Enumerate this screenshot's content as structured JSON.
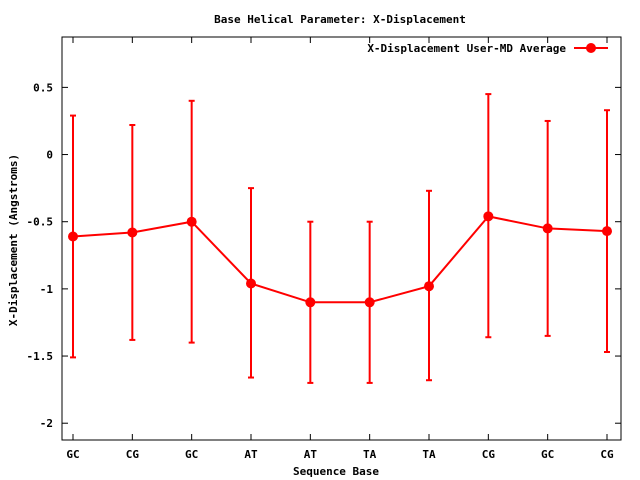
{
  "chart_data": {
    "type": "line",
    "title": "Base  Helical Parameter: X-Displacement",
    "xlabel": "Sequence Base",
    "ylabel": "X-Displacement (Angstroms)",
    "categories": [
      "GC",
      "CG",
      "GC",
      "AT",
      "AT",
      "TA",
      "TA",
      "CG",
      "GC",
      "CG"
    ],
    "ylim": [
      -2.125,
      0.875
    ],
    "yticks": [
      0.5,
      0,
      -0.5,
      -1,
      -1.5,
      -2
    ],
    "ytick_labels": [
      "0.5",
      "0",
      "-0.5",
      "-1",
      "-1.5",
      "-2"
    ],
    "legend_position": "top-right",
    "grid": false,
    "series": [
      {
        "name": "X-Displacement User-MD Average",
        "color": "#ff0000",
        "values": [
          -0.61,
          -0.58,
          -0.5,
          -0.96,
          -1.1,
          -1.1,
          -0.98,
          -0.46,
          -0.55,
          -0.57
        ],
        "err_low": [
          -1.51,
          -1.38,
          -1.4,
          -1.66,
          -1.7,
          -1.7,
          -1.68,
          -1.36,
          -1.35,
          -1.47
        ],
        "err_high": [
          0.29,
          0.22,
          0.4,
          -0.25,
          -0.5,
          -0.5,
          -0.27,
          0.45,
          0.25,
          0.33
        ]
      }
    ]
  }
}
